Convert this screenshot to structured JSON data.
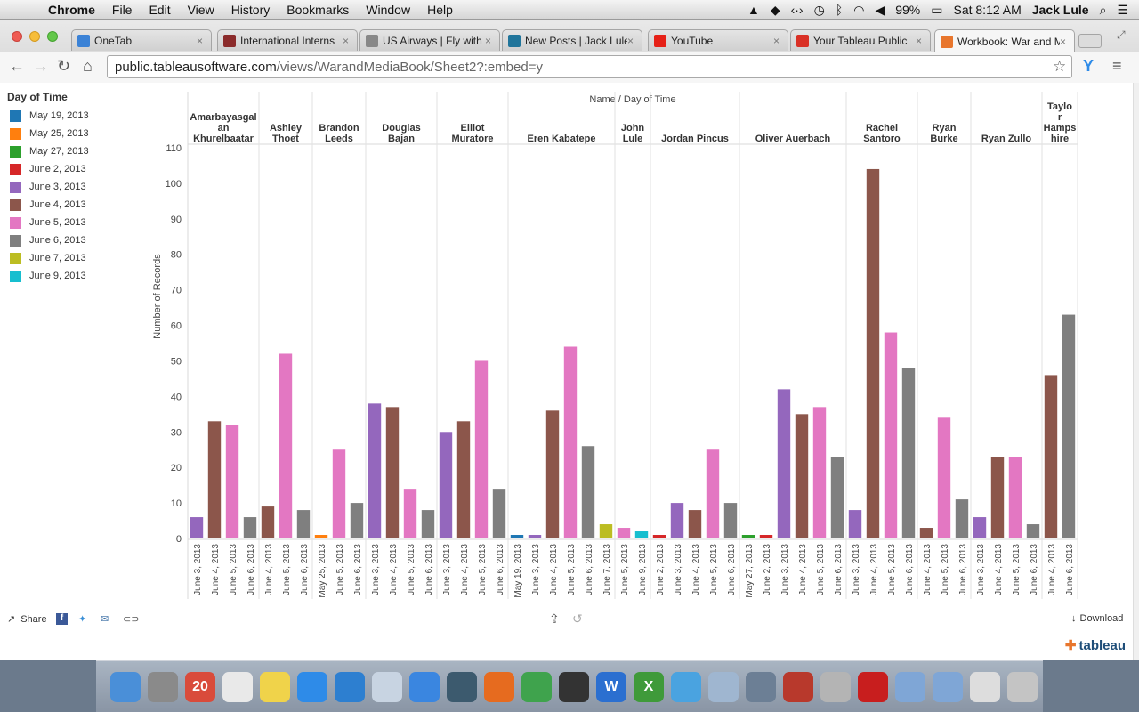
{
  "menubar": {
    "app": "Chrome",
    "items": [
      "File",
      "Edit",
      "View",
      "History",
      "Bookmarks",
      "Window",
      "Help"
    ],
    "battery": "99%",
    "clock": "Sat 8:12 AM",
    "user": "Jack Lule"
  },
  "tabs": [
    {
      "label": "OneTab",
      "icon": "onetab-icon",
      "color": "#3b82d6"
    },
    {
      "label": "International Interns",
      "icon": "university-shield-icon",
      "color": "#8b2b2b"
    },
    {
      "label": "US Airways | Fly with",
      "icon": "page-icon",
      "color": "#888888"
    },
    {
      "label": "New Posts | Jack Lule",
      "icon": "wordpress-icon",
      "color": "#21759b"
    },
    {
      "label": "YouTube",
      "icon": "youtube-icon",
      "color": "#e62117"
    },
    {
      "label": "Your Tableau Public",
      "icon": "gmail-icon",
      "color": "#d93025"
    },
    {
      "label": "Workbook: War and M",
      "icon": "tableau-icon",
      "color": "#e8762d"
    }
  ],
  "address": {
    "host": "public.tableausoftware.com",
    "path": "/views/WarandMediaBook/Sheet2?:embed=y"
  },
  "legend": {
    "title": "Day of Time",
    "items": [
      {
        "label": "May 19, 2013",
        "color": "#1f77b4"
      },
      {
        "label": "May 25, 2013",
        "color": "#ff7f0e"
      },
      {
        "label": "May 27, 2013",
        "color": "#2ca02c"
      },
      {
        "label": "June 2, 2013",
        "color": "#d62728"
      },
      {
        "label": "June 3, 2013",
        "color": "#9467bd"
      },
      {
        "label": "June 4, 2013",
        "color": "#8c564b"
      },
      {
        "label": "June 5, 2013",
        "color": "#e377c2"
      },
      {
        "label": "June 6, 2013",
        "color": "#7f7f7f"
      },
      {
        "label": "June 7, 2013",
        "color": "#bcbd22"
      },
      {
        "label": "June 9, 2013",
        "color": "#17becf"
      }
    ]
  },
  "chart_data": {
    "type": "bar",
    "header": "Name  /  Day of Time",
    "ylabel": "Number of Records",
    "ylim": [
      0,
      110
    ],
    "yticks": [
      0,
      10,
      20,
      30,
      40,
      50,
      60,
      70,
      80,
      90,
      100,
      110
    ],
    "groups": [
      {
        "name": "Amarbayasgalan Khurelbaatar",
        "bars": [
          [
            "June 3, 2013",
            6
          ],
          [
            "June 4, 2013",
            33
          ],
          [
            "June 5, 2013",
            32
          ],
          [
            "June 6, 2013",
            6
          ]
        ]
      },
      {
        "name": "Ashley Thoet",
        "bars": [
          [
            "June 4, 2013",
            9
          ],
          [
            "June 5, 2013",
            52
          ],
          [
            "June 6, 2013",
            8
          ]
        ]
      },
      {
        "name": "Brandon Leeds",
        "bars": [
          [
            "May 25, 2013",
            1
          ],
          [
            "June 5, 2013",
            25
          ],
          [
            "June 6, 2013",
            10
          ]
        ]
      },
      {
        "name": "Douglas Bajan",
        "bars": [
          [
            "June 3, 2013",
            38
          ],
          [
            "June 4, 2013",
            37
          ],
          [
            "June 5, 2013",
            14
          ],
          [
            "June 6, 2013",
            8
          ]
        ]
      },
      {
        "name": "Elliot Muratore",
        "bars": [
          [
            "June 3, 2013",
            30
          ],
          [
            "June 4, 2013",
            33
          ],
          [
            "June 5, 2013",
            50
          ],
          [
            "June 6, 2013",
            14
          ]
        ]
      },
      {
        "name": "Eren Kabatepe",
        "bars": [
          [
            "May 19, 2013",
            1
          ],
          [
            "June 3, 2013",
            1
          ],
          [
            "June 4, 2013",
            36
          ],
          [
            "June 5, 2013",
            54
          ],
          [
            "June 6, 2013",
            26
          ],
          [
            "June 7, 2013",
            4
          ]
        ]
      },
      {
        "name": "John Lule",
        "bars": [
          [
            "June 5, 2013",
            3
          ],
          [
            "June 9, 2013",
            2
          ]
        ]
      },
      {
        "name": "Jordan Pincus",
        "bars": [
          [
            "June 2, 2013",
            1
          ],
          [
            "June 3, 2013",
            10
          ],
          [
            "June 4, 2013",
            8
          ],
          [
            "June 5, 2013",
            25
          ],
          [
            "June 6, 2013",
            10
          ]
        ]
      },
      {
        "name": "Oliver Auerbach",
        "bars": [
          [
            "May 27, 2013",
            1
          ],
          [
            "June 2, 2013",
            1
          ],
          [
            "June 3, 2013",
            42
          ],
          [
            "June 4, 2013",
            35
          ],
          [
            "June 5, 2013",
            37
          ],
          [
            "June 6, 2013",
            23
          ]
        ]
      },
      {
        "name": "Rachel Santoro",
        "bars": [
          [
            "June 3, 2013",
            8
          ],
          [
            "June 4, 2013",
            104
          ],
          [
            "June 5, 2013",
            58
          ],
          [
            "June 6, 2013",
            48
          ]
        ]
      },
      {
        "name": "Ryan Burke",
        "bars": [
          [
            "June 4, 2013",
            3
          ],
          [
            "June 5, 2013",
            34
          ],
          [
            "June 6, 2013",
            11
          ]
        ]
      },
      {
        "name": "Ryan Zullo",
        "bars": [
          [
            "June 3, 2013",
            6
          ],
          [
            "June 4, 2013",
            23
          ],
          [
            "June 5, 2013",
            23
          ],
          [
            "June 6, 2013",
            4
          ]
        ]
      },
      {
        "name": "Taylor Hampshire",
        "bars": [
          [
            "June 4, 2013",
            46
          ],
          [
            "June 6, 2013",
            63
          ]
        ]
      }
    ]
  },
  "footer": {
    "share": "Share",
    "download": "Download",
    "brand": "tableau"
  },
  "dock": [
    {
      "name": "finder-icon",
      "color": "#4a8fd8"
    },
    {
      "name": "launchpad-icon",
      "color": "#8a8a8a"
    },
    {
      "name": "calendar-icon",
      "color": "#d94b3b",
      "text": "20"
    },
    {
      "name": "reminders-icon",
      "color": "#e9e9e9"
    },
    {
      "name": "stickies-icon",
      "color": "#f0d34a"
    },
    {
      "name": "app-store-icon",
      "color": "#2e8be8"
    },
    {
      "name": "dropbox-icon",
      "color": "#2d7fd0"
    },
    {
      "name": "mail-icon",
      "color": "#c8d4e2"
    },
    {
      "name": "itunes-icon",
      "color": "#3a86e0"
    },
    {
      "name": "time-machine-icon",
      "color": "#3c5a6e"
    },
    {
      "name": "firefox-icon",
      "color": "#e66b1f"
    },
    {
      "name": "chrome-icon",
      "color": "#3fa34d"
    },
    {
      "name": "final-cut-icon",
      "color": "#333333"
    },
    {
      "name": "word-icon",
      "color": "#2b6fd0",
      "text": "W"
    },
    {
      "name": "excel-icon",
      "color": "#3f9a3a",
      "text": "X"
    },
    {
      "name": "safari-icon",
      "color": "#4aa3e0"
    },
    {
      "name": "preview-icon",
      "color": "#9fb6d0"
    },
    {
      "name": "iphoto-icon",
      "color": "#6c7f95"
    },
    {
      "name": "photo-booth-icon",
      "color": "#b8392c"
    },
    {
      "name": "installer-icon",
      "color": "#b4b4b4"
    },
    {
      "name": "acrobat-icon",
      "color": "#c81e1e"
    },
    {
      "name": "folder-icon",
      "color": "#7fa6d6"
    },
    {
      "name": "documents-folder-icon",
      "color": "#7fa6d6"
    },
    {
      "name": "downloads-stack-icon",
      "color": "#dddddd"
    },
    {
      "name": "trash-icon",
      "color": "#c4c4c4"
    }
  ]
}
